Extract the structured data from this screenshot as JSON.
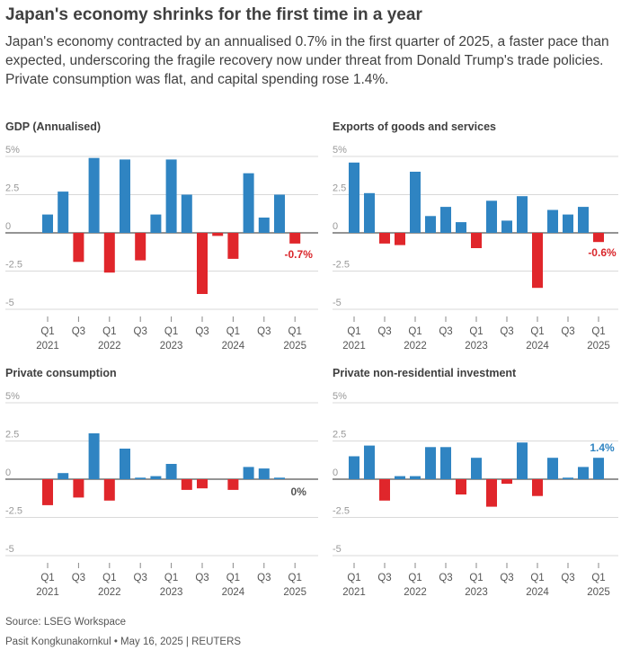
{
  "title": "Japan's economy shrinks for the first time in a year",
  "subtitle": "Japan's economy contracted by an annualised 0.7% in the first quarter of 2025, a faster pace than expected, underscoring the fragile recovery now under threat from Donald Trump's trade policies. Private consumption was flat, and capital spending rose 1.4%.",
  "source": "Source: LSEG Workspace",
  "credit": "Pasit Kongkunakornkul • May 16, 2025 | REUTERS",
  "colors": {
    "positive": "#2f84c2",
    "negative": "#e0262b",
    "negative_label": "#d9262b",
    "positive_label": "#2f84c2",
    "neutral_label": "#555555"
  },
  "chart_data": [
    {
      "type": "bar",
      "title": "GDP (Annualised)",
      "y_tick_labels": [
        "5%",
        "2.5",
        "0",
        "-2.5",
        "-5"
      ],
      "y_ticks": [
        5,
        2.5,
        0,
        -2.5,
        -5
      ],
      "ylim": [
        -5,
        5
      ],
      "x_tick_labels": [
        [
          "Q1",
          "2021"
        ],
        [
          "Q3",
          ""
        ],
        [
          "Q1",
          "2022"
        ],
        [
          "Q3",
          ""
        ],
        [
          "Q1",
          "2023"
        ],
        [
          "Q3",
          ""
        ],
        [
          "Q1",
          "2024"
        ],
        [
          "Q3",
          ""
        ],
        [
          "Q1",
          "2025"
        ]
      ],
      "categories": [
        "Q1 2021",
        "Q2 2021",
        "Q3 2021",
        "Q4 2021",
        "Q1 2022",
        "Q2 2022",
        "Q3 2022",
        "Q4 2022",
        "Q1 2023",
        "Q2 2023",
        "Q3 2023",
        "Q4 2023",
        "Q1 2024",
        "Q2 2024",
        "Q3 2024",
        "Q4 2024",
        "Q1 2025"
      ],
      "values": [
        1.2,
        2.7,
        -1.9,
        4.9,
        -2.6,
        4.8,
        -1.8,
        1.2,
        4.8,
        2.5,
        -4.0,
        -0.2,
        -1.7,
        3.9,
        1.0,
        2.5,
        -0.7
      ],
      "annotation": "-0.7%"
    },
    {
      "type": "bar",
      "title": "Exports of goods and services",
      "y_tick_labels": [
        "5%",
        "2.5",
        "0",
        "-2.5",
        "-5"
      ],
      "y_ticks": [
        5,
        2.5,
        0,
        -2.5,
        -5
      ],
      "ylim": [
        -5,
        5
      ],
      "x_tick_labels": [
        [
          "Q1",
          "2021"
        ],
        [
          "Q3",
          ""
        ],
        [
          "Q1",
          "2022"
        ],
        [
          "Q3",
          ""
        ],
        [
          "Q1",
          "2023"
        ],
        [
          "Q3",
          ""
        ],
        [
          "Q1",
          "2024"
        ],
        [
          "Q3",
          ""
        ],
        [
          "Q1",
          "2025"
        ]
      ],
      "categories": [
        "Q1 2021",
        "Q2 2021",
        "Q3 2021",
        "Q4 2021",
        "Q1 2022",
        "Q2 2022",
        "Q3 2022",
        "Q4 2022",
        "Q1 2023",
        "Q2 2023",
        "Q3 2023",
        "Q4 2023",
        "Q1 2024",
        "Q2 2024",
        "Q3 2024",
        "Q4 2024",
        "Q1 2025"
      ],
      "values": [
        4.6,
        2.6,
        -0.7,
        -0.8,
        4.0,
        1.1,
        1.7,
        0.7,
        -1.0,
        2.1,
        0.8,
        2.4,
        -3.6,
        1.5,
        1.2,
        1.7,
        -0.6
      ],
      "annotation": "-0.6%"
    },
    {
      "type": "bar",
      "title": "Private consumption",
      "y_tick_labels": [
        "5%",
        "2.5",
        "0",
        "-2.5",
        "-5"
      ],
      "y_ticks": [
        5,
        2.5,
        0,
        -2.5,
        -5
      ],
      "ylim": [
        -5,
        5
      ],
      "x_tick_labels": [
        [
          "Q1",
          "2021"
        ],
        [
          "Q3",
          ""
        ],
        [
          "Q1",
          "2022"
        ],
        [
          "Q3",
          ""
        ],
        [
          "Q1",
          "2023"
        ],
        [
          "Q3",
          ""
        ],
        [
          "Q1",
          "2024"
        ],
        [
          "Q3",
          ""
        ],
        [
          "Q1",
          "2025"
        ]
      ],
      "categories": [
        "Q1 2021",
        "Q2 2021",
        "Q3 2021",
        "Q4 2021",
        "Q1 2022",
        "Q2 2022",
        "Q3 2022",
        "Q4 2022",
        "Q1 2023",
        "Q2 2023",
        "Q3 2023",
        "Q4 2023",
        "Q1 2024",
        "Q2 2024",
        "Q3 2024",
        "Q4 2024",
        "Q1 2025"
      ],
      "values": [
        -1.7,
        0.4,
        -1.2,
        3.0,
        -1.4,
        2.0,
        0.1,
        0.2,
        1.0,
        -0.7,
        -0.6,
        0.0,
        -0.7,
        0.8,
        0.7,
        0.1,
        0.0
      ],
      "annotation": "0%"
    },
    {
      "type": "bar",
      "title": "Private non-residential investment",
      "y_tick_labels": [
        "5%",
        "2.5",
        "0",
        "-2.5",
        "-5"
      ],
      "y_ticks": [
        5,
        2.5,
        0,
        -2.5,
        -5
      ],
      "ylim": [
        -5,
        5
      ],
      "x_tick_labels": [
        [
          "Q1",
          "2021"
        ],
        [
          "Q3",
          ""
        ],
        [
          "Q1",
          "2022"
        ],
        [
          "Q3",
          ""
        ],
        [
          "Q1",
          "2023"
        ],
        [
          "Q3",
          ""
        ],
        [
          "Q1",
          "2024"
        ],
        [
          "Q3",
          ""
        ],
        [
          "Q1",
          "2025"
        ]
      ],
      "categories": [
        "Q1 2021",
        "Q2 2021",
        "Q3 2021",
        "Q4 2021",
        "Q1 2022",
        "Q2 2022",
        "Q3 2022",
        "Q4 2022",
        "Q1 2023",
        "Q2 2023",
        "Q3 2023",
        "Q4 2023",
        "Q1 2024",
        "Q2 2024",
        "Q3 2024",
        "Q4 2024",
        "Q1 2025"
      ],
      "values": [
        1.5,
        2.2,
        -1.4,
        0.2,
        0.2,
        2.1,
        2.1,
        -1.0,
        1.4,
        -1.8,
        -0.3,
        2.4,
        -1.1,
        1.4,
        0.1,
        0.8,
        1.4
      ],
      "annotation": "1.4%"
    }
  ]
}
